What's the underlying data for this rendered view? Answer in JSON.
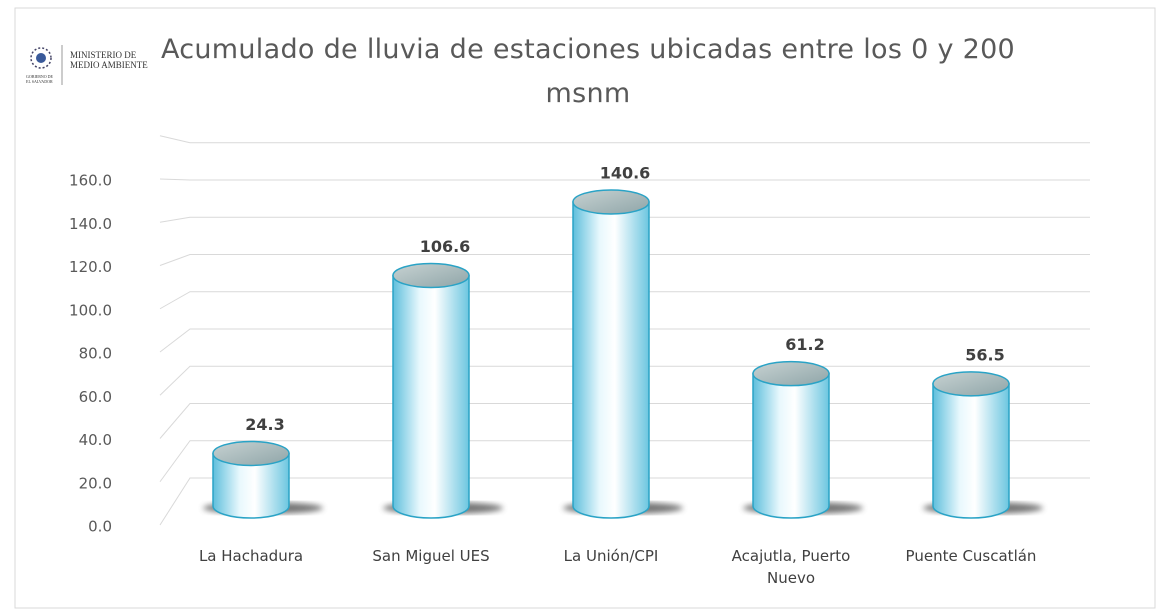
{
  "chart_data": {
    "type": "bar",
    "title": "Acumulado de lluvia de estaciones ubicadas entre los 0 y 200 msnm",
    "logo_text": [
      "MINISTERIO DE",
      "MEDIO AMBIENTE"
    ],
    "logo_caption": [
      "GOBIERNO DE",
      "EL SALVADOR"
    ],
    "categories": [
      "La Hachadura",
      "San Miguel UES",
      "La Unión/CPI",
      "Acajutla, Puerto Nuevo",
      "Puente Cuscatlán"
    ],
    "values": [
      24.3,
      106.6,
      140.6,
      61.2,
      56.5
    ],
    "color": "#7fd0e6",
    "ylim": [
      0,
      180
    ],
    "yticks": [
      {
        "value": 0,
        "label": "0.0"
      },
      {
        "value": 20,
        "label": "20.0"
      },
      {
        "value": 40,
        "label": "40.0"
      },
      {
        "value": 60,
        "label": "60.0"
      },
      {
        "value": 80,
        "label": "80.0"
      },
      {
        "value": 100,
        "label": "100.0"
      },
      {
        "value": 120,
        "label": "120.0"
      },
      {
        "value": 140,
        "label": "140.0"
      },
      {
        "value": 160,
        "label": "160.0"
      }
    ],
    "grid": true
  }
}
